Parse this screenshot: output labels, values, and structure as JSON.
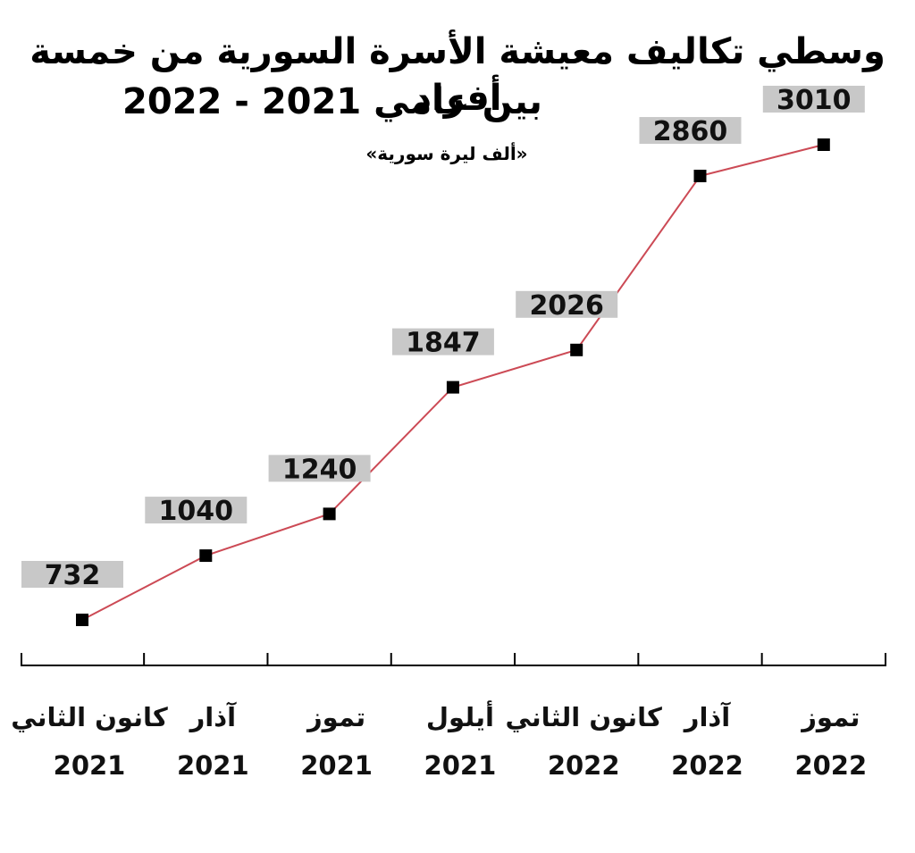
{
  "title_line1": "وسطي تكاليف معيشة الأسرة السورية من خمسة أفراد",
  "title_line2": "بين عامي 2021 - 2022",
  "unit_note": "«ألف ليرة سورية»",
  "colors": {
    "line": "#cc4a55",
    "label_box": "#c8c8c8",
    "marker": "#000000",
    "axis": "#000000"
  },
  "chart_data": {
    "type": "line",
    "title": "وسطي تكاليف معيشة الأسرة السورية من خمسة أفراد بين عامي 2021 - 2022",
    "ylabel": "ألف ليرة سورية",
    "xlabel": "",
    "ylim": [
      732,
      3010
    ],
    "grid": false,
    "categories": [
      {
        "month": "كانون الثاني",
        "year": "2021"
      },
      {
        "month": "آذار",
        "year": "2021"
      },
      {
        "month": "تموز",
        "year": "2021"
      },
      {
        "month": "أيلول",
        "year": "2021"
      },
      {
        "month": "كانون الثاني",
        "year": "2022"
      },
      {
        "month": "آذار",
        "year": "2022"
      },
      {
        "month": "تموز",
        "year": "2022"
      }
    ],
    "series": [
      {
        "values": [
          732,
          1040,
          1240,
          1847,
          2026,
          2860,
          3010
        ]
      }
    ]
  }
}
